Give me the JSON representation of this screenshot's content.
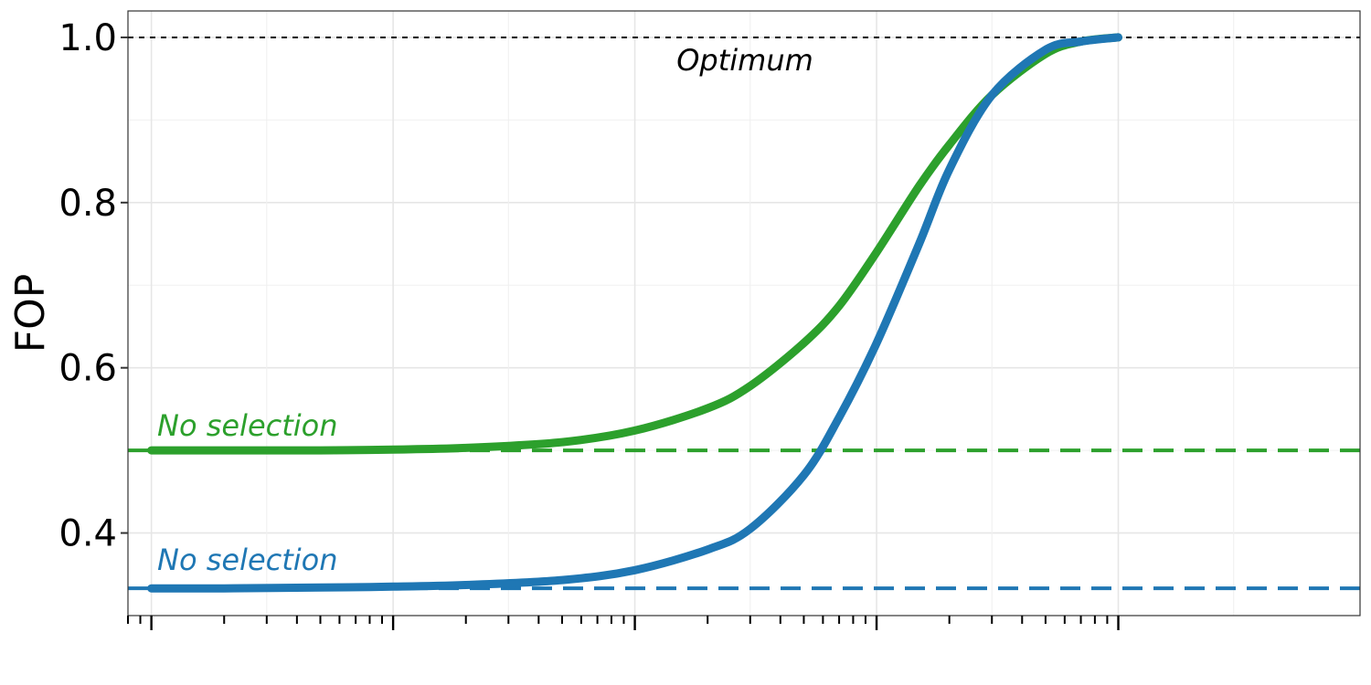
{
  "chart_data": {
    "type": "line",
    "title": "",
    "xlabel": "",
    "ylabel": "FOP",
    "xscale": "log",
    "xlim": [
      8e-05,
      10
    ],
    "ylim": [
      0.3,
      1.032
    ],
    "yticks": [
      0.4,
      0.6,
      0.8,
      1.0
    ],
    "ytick_labels": [
      "0.4",
      "0.6",
      "0.8",
      "1.0"
    ],
    "x_major_ticks": [
      0.0001,
      0.001,
      0.01,
      0.1,
      1
    ],
    "grid": true,
    "series": [
      {
        "color": "#2ca02c",
        "style": "solid",
        "x": [
          0.0001,
          0.0002,
          0.0005,
          0.001,
          0.002,
          0.005,
          0.01,
          0.02,
          0.03,
          0.05,
          0.07,
          0.1,
          0.15,
          0.2,
          0.3,
          0.5,
          0.7,
          1
        ],
        "y": [
          0.5,
          0.5,
          0.5,
          0.501,
          0.503,
          0.51,
          0.524,
          0.551,
          0.578,
          0.63,
          0.675,
          0.74,
          0.82,
          0.87,
          0.93,
          0.98,
          0.995,
          1.0
        ]
      },
      {
        "color": "#1f77b4",
        "style": "solid",
        "x": [
          0.0001,
          0.0002,
          0.0005,
          0.001,
          0.002,
          0.005,
          0.01,
          0.02,
          0.03,
          0.05,
          0.07,
          0.1,
          0.15,
          0.2,
          0.3,
          0.5,
          0.7,
          1
        ],
        "y": [
          0.333,
          0.333,
          0.334,
          0.335,
          0.337,
          0.343,
          0.355,
          0.38,
          0.405,
          0.47,
          0.54,
          0.63,
          0.75,
          0.84,
          0.93,
          0.985,
          0.995,
          1.0
        ]
      }
    ],
    "reference_lines": [
      {
        "y": 1.0,
        "color": "#000000",
        "style": "dotted",
        "label": "Optimum",
        "label_color": "#000000"
      },
      {
        "y": 0.5,
        "color": "#2ca02c",
        "style": "dashed",
        "label": "No selection",
        "label_color": "#2ca02c"
      },
      {
        "y": 0.333,
        "color": "#1f77b4",
        "style": "dashed",
        "label": "No selection",
        "label_color": "#1f77b4"
      }
    ]
  }
}
